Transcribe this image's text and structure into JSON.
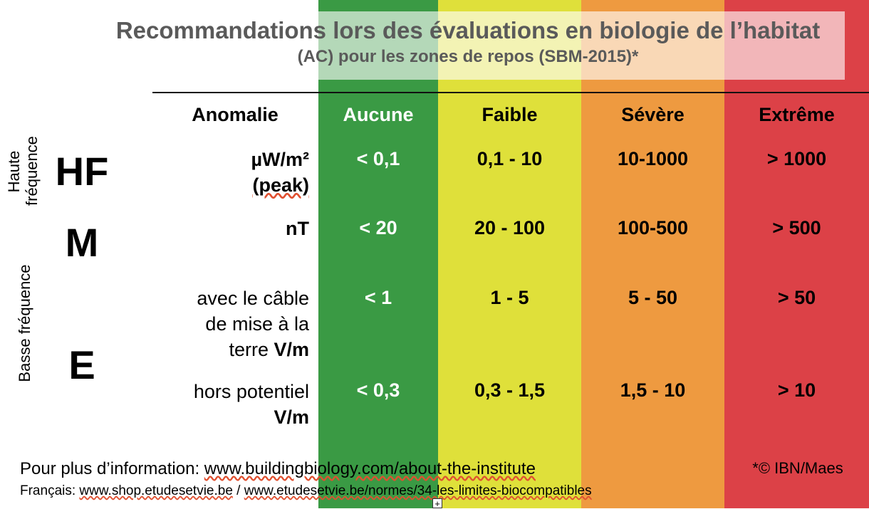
{
  "colors": {
    "aucune": "#3a9a44",
    "faible": "#dfe03a",
    "severe": "#ee9a40",
    "extreme": "#dc4147"
  },
  "title": {
    "line1": "Recommandations lors des évaluations en biologie de l’habitat",
    "line2": "(AC) pour les zones de repos (SBM-2015)*"
  },
  "header": {
    "anomalie": "Anomalie",
    "aucune": "Aucune",
    "faible": "Faible",
    "severe": "Sévère",
    "extreme": "Extrême"
  },
  "side": {
    "haute": "Haute",
    "frequence": "fréquence",
    "basse": "Basse fréquence"
  },
  "rows": {
    "hf": {
      "letter": "HF",
      "unit_line1": "µW/m²",
      "unit_line2": "(peak)",
      "aucune": "< 0,1",
      "faible": "0,1 - 10",
      "severe": "10-1000",
      "extreme": "> 1000"
    },
    "m": {
      "letter": "M",
      "unit": "nT",
      "aucune": "< 20",
      "faible": "20 - 100",
      "severe": "100-500",
      "extreme": "> 500"
    },
    "e": {
      "letter": "E"
    },
    "e1": {
      "line1": "avec le câble",
      "line2": "de mise à la",
      "line3_text": "terre ",
      "line3_unit": "V/m",
      "aucune": "< 1",
      "faible": "1 - 5",
      "severe": "5 - 50",
      "extreme": "> 50"
    },
    "e2": {
      "line1": "hors potentiel",
      "line2": "V/m",
      "aucune": "< 0,3",
      "faible": "0,3 - 1,5",
      "severe": "1,5 - 10",
      "extreme": "> 10"
    }
  },
  "footer": {
    "info_prefix": "Pour plus d’information: ",
    "info_link": "www.buildingbiology.com/about-the-institute",
    "copyright": "*© IBN/Maes",
    "fr_prefix": "Français: ",
    "fr_link1": "www.shop.etudesetvie.be",
    "fr_sep": " / ",
    "fr_link2": "www.etudesetvie.be/normes/34-les-limites-biocompatibles"
  },
  "marker": "+"
}
